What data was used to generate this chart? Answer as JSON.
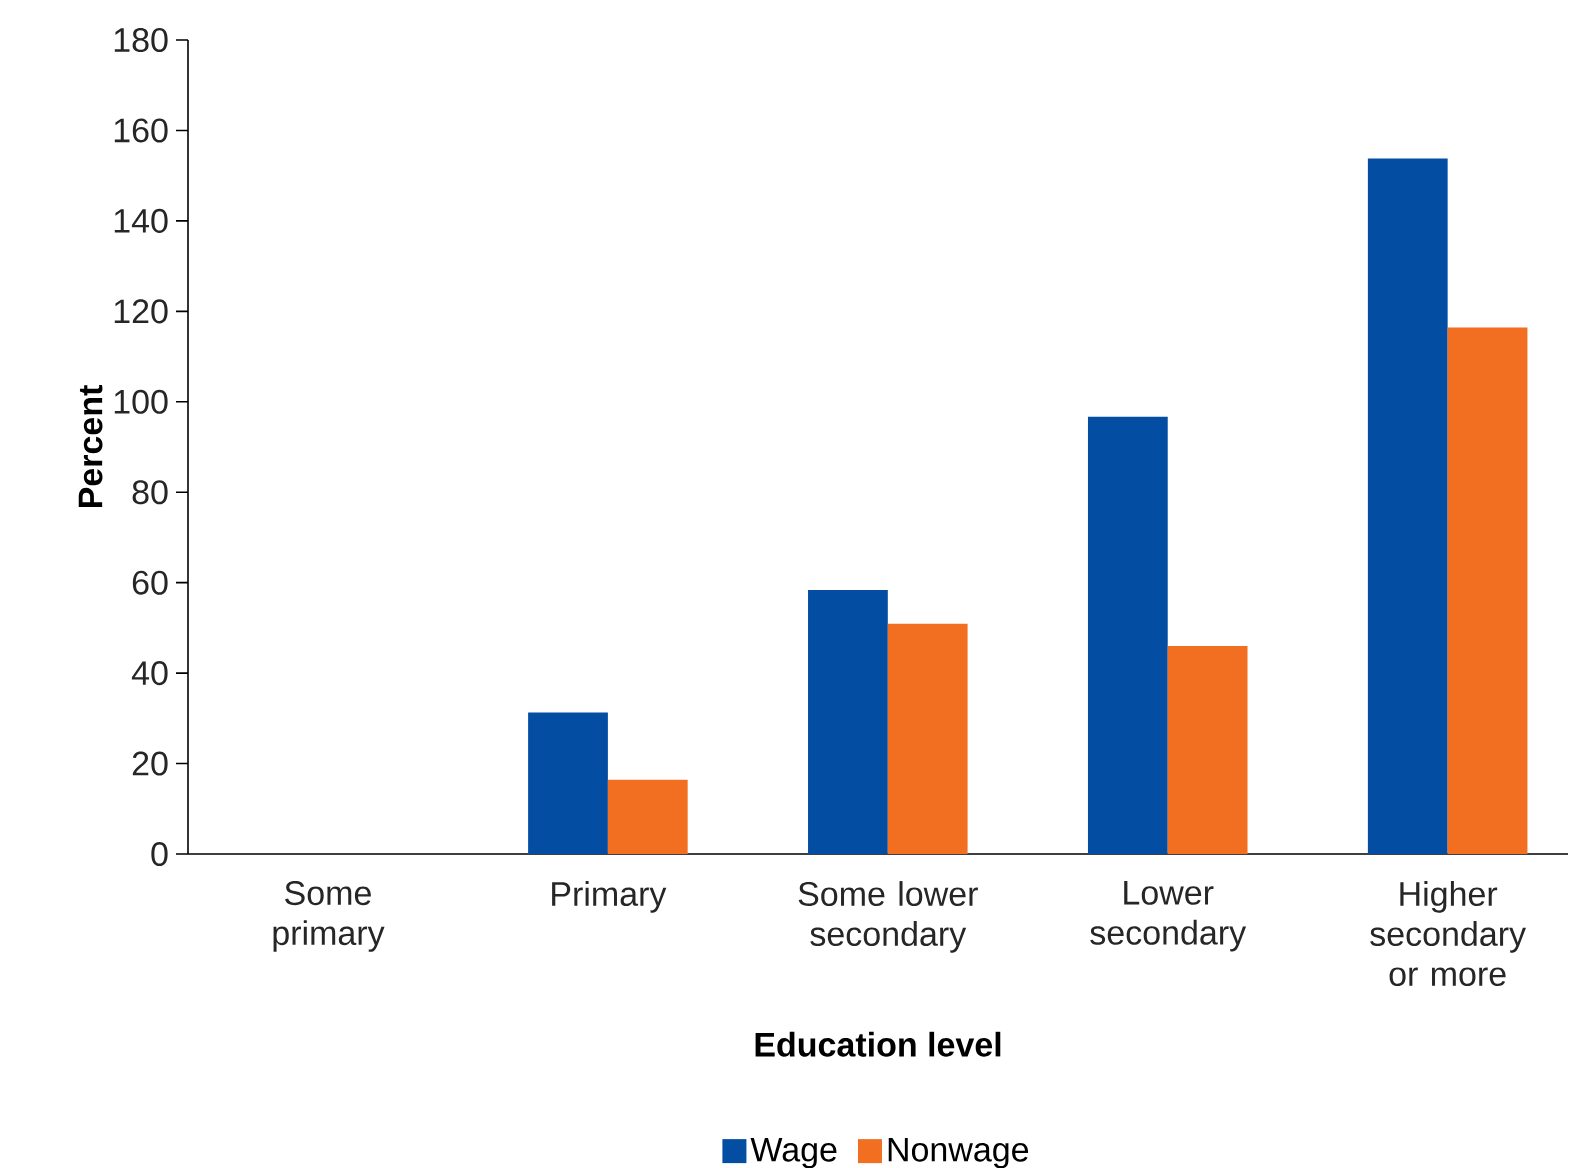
{
  "chart_data": {
    "type": "bar",
    "xlabel": "Education level",
    "ylabel": "Percent",
    "categories": [
      "Some primary",
      "Primary",
      "Some lower secondary",
      "Lower secondary",
      "Higher secondary or more"
    ],
    "series": [
      {
        "name": "Wage",
        "color": "#034ea2",
        "values": [
          0,
          31.3,
          58.4,
          96.7,
          153.8
        ]
      },
      {
        "name": "Nonwage",
        "color": "#f26f21",
        "values": [
          0,
          16.4,
          50.9,
          46,
          116.4
        ]
      }
    ],
    "ylim": [
      0,
      180
    ],
    "yticks": [
      0,
      20,
      40,
      60,
      80,
      100,
      120,
      140,
      160,
      180
    ],
    "grid": false,
    "legend": "bottom"
  }
}
